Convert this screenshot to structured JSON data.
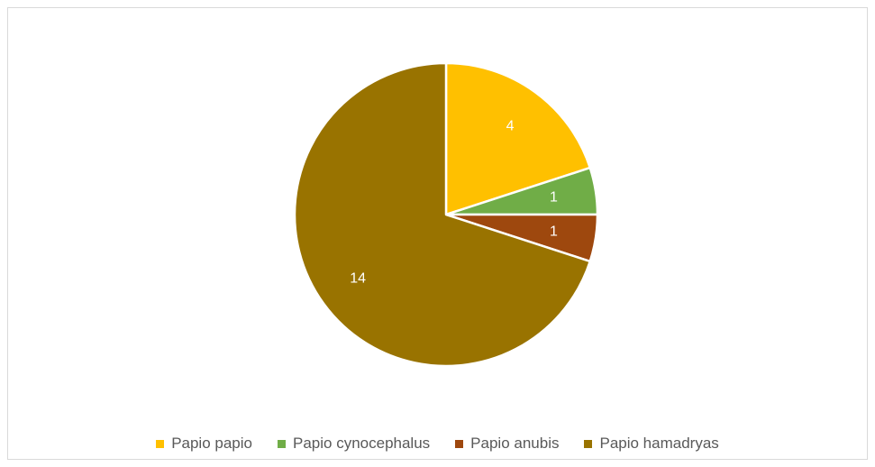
{
  "chart_data": {
    "type": "pie",
    "title": "",
    "start_angle_deg": 0,
    "direction": "clockwise",
    "legend_position": "bottom",
    "slices": [
      {
        "label": "Papio papio",
        "value": 4,
        "color": "#FFC000"
      },
      {
        "label": "Papio cynocephalus",
        "value": 1,
        "color": "#70AD47"
      },
      {
        "label": "Papio anubis",
        "value": 1,
        "color": "#9E480E"
      },
      {
        "label": "Papio hamadryas",
        "value": 14,
        "color": "#997300"
      }
    ]
  }
}
